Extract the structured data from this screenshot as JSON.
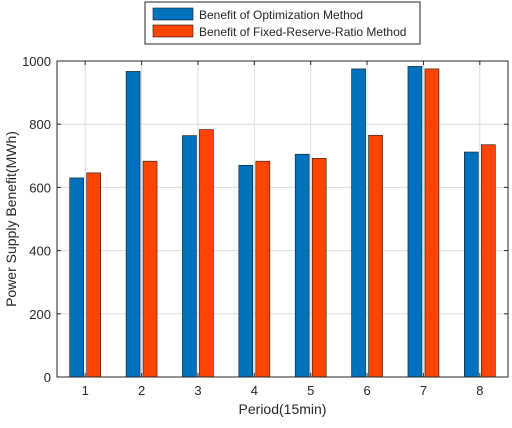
{
  "chart_data": {
    "type": "bar",
    "categories": [
      "1",
      "2",
      "3",
      "4",
      "5",
      "6",
      "7",
      "8"
    ],
    "series": [
      {
        "name": "Benefit of Optimization Method",
        "color": "#0072BD",
        "values": [
          630,
          967,
          764,
          670,
          705,
          975,
          983,
          712
        ]
      },
      {
        "name": "Benefit of Fixed-Reserve-Ratio Method",
        "color": "#FF4500",
        "values": [
          646,
          683,
          783,
          683,
          692,
          765,
          975,
          735
        ]
      }
    ],
    "title": "",
    "xlabel": "Period(15min)",
    "ylabel": "Power Supply Benefit(MWh)",
    "ylim": [
      0,
      1000
    ],
    "yticks": [
      0,
      200,
      400,
      600,
      800,
      1000
    ],
    "grid": true,
    "legend_position": "top-center outside"
  }
}
